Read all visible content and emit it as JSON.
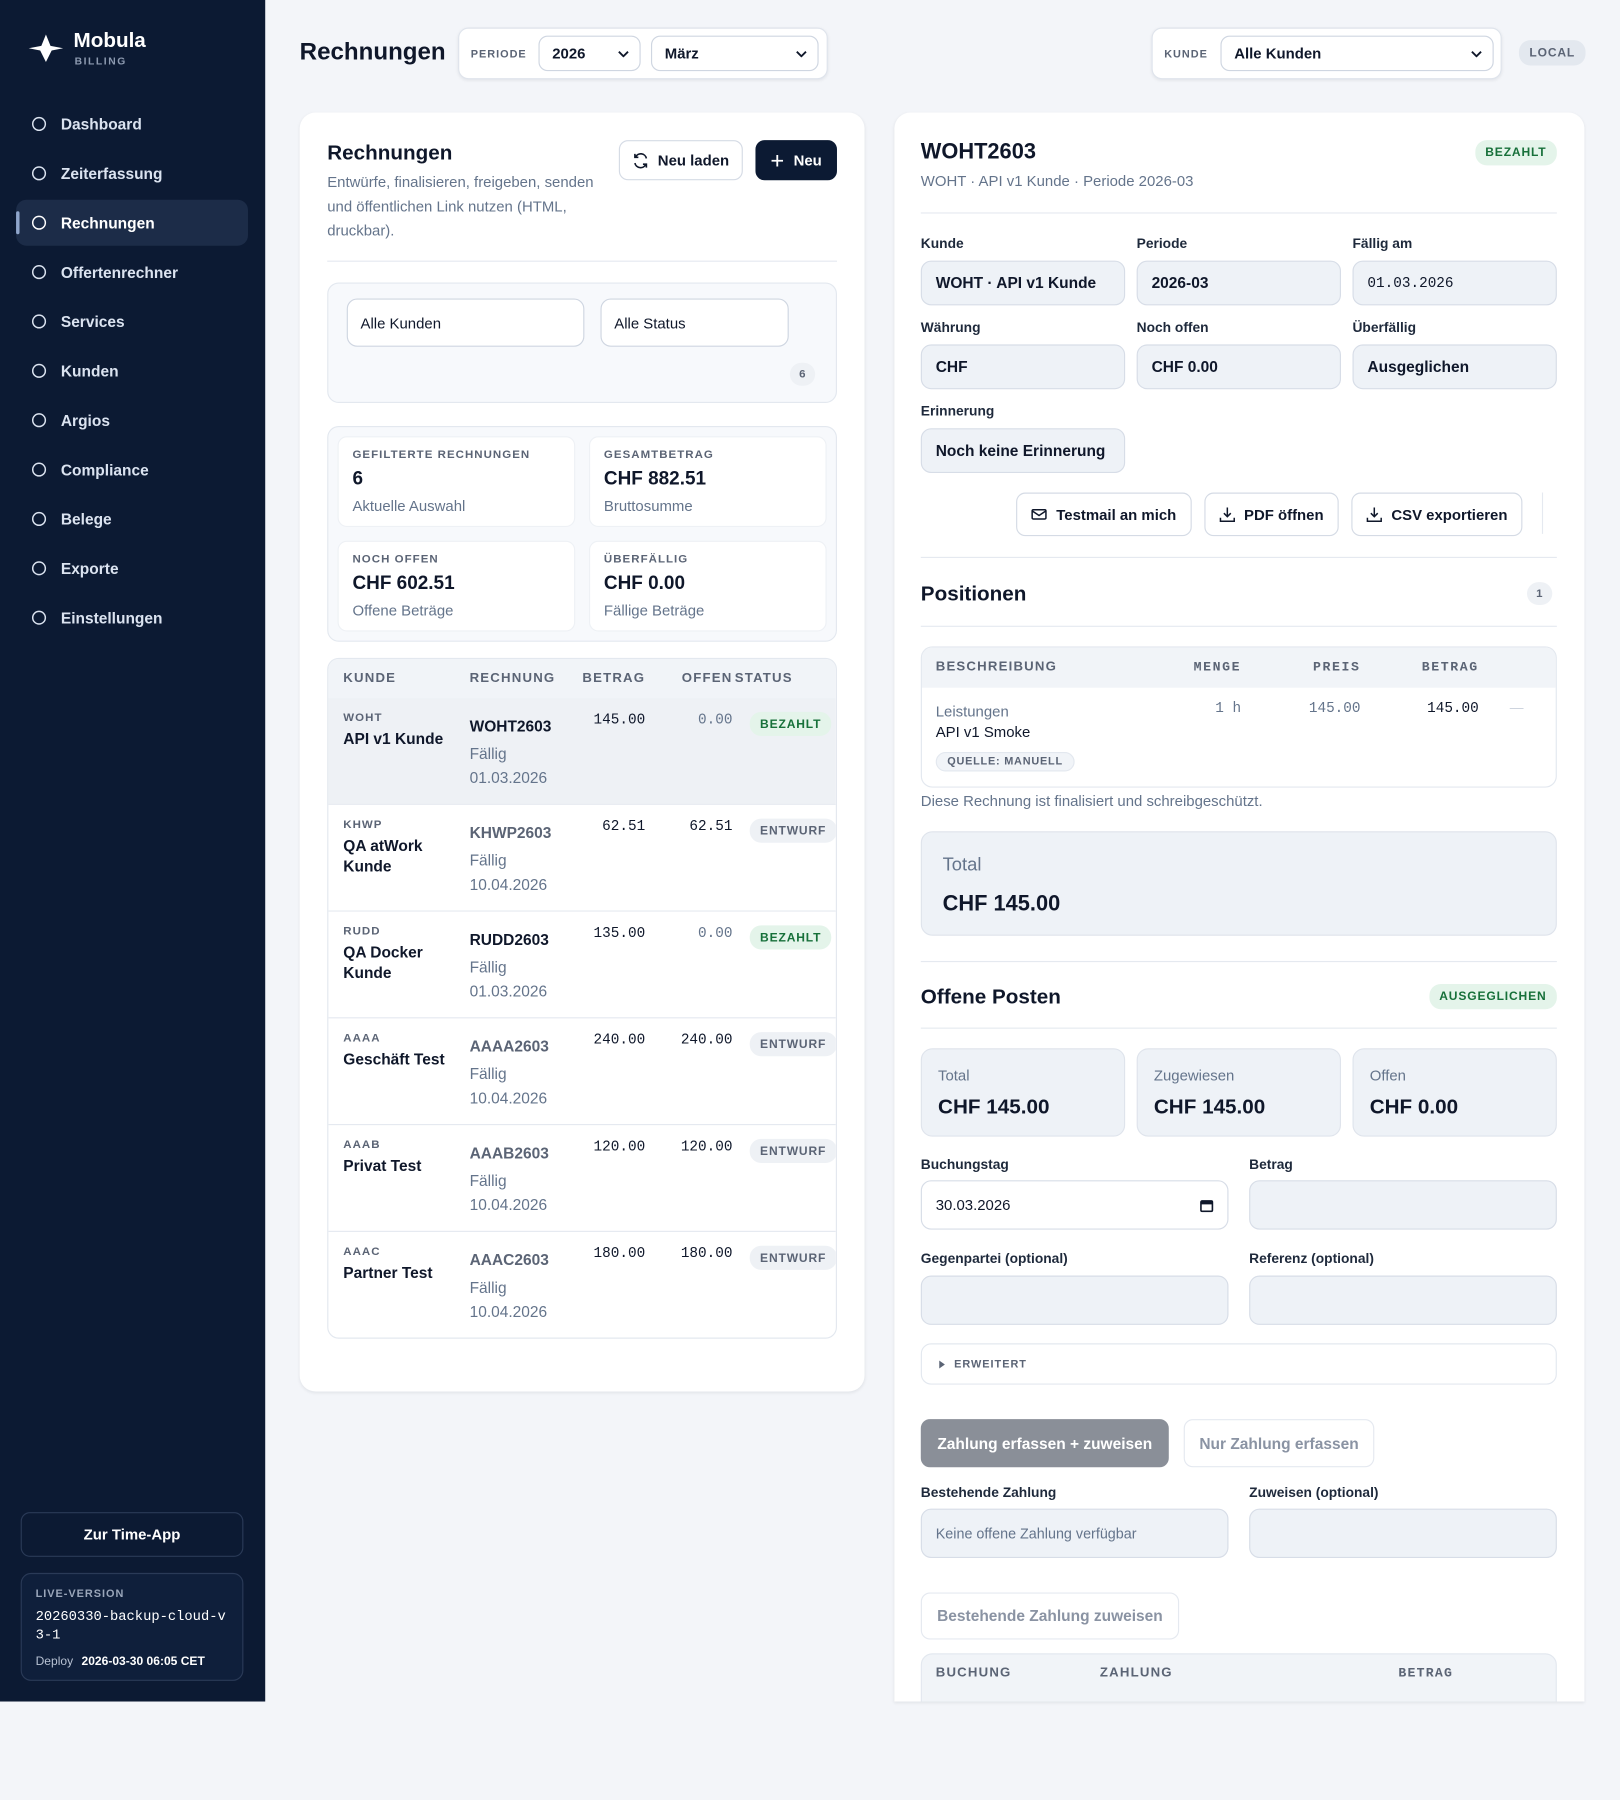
{
  "sidebar": {
    "brand": "Mobula",
    "brand_sub": "BILLING",
    "nav": [
      "Dashboard",
      "Zeiterfassung",
      "Rechnungen",
      "Offertenrechner",
      "Services",
      "Kunden",
      "Argios",
      "Compliance",
      "Belege",
      "Exporte",
      "Einstellungen"
    ],
    "time_app": "Zur Time-App",
    "version_label": "LIVE-VERSION",
    "version": "20260330-backup-cloud-v3-1",
    "deploy_label": "Deploy",
    "deploy": "2026-03-30 06:05 CET"
  },
  "header": {
    "title": "Rechnungen",
    "period_label": "PERIODE",
    "year": "2026",
    "month": "März",
    "customer_label": "KUNDE",
    "customer": "Alle Kunden",
    "env": "LOCAL"
  },
  "list": {
    "title": "Rechnungen",
    "description": "Entwürfe, finalisieren, freigeben, senden und öffentlichen Link nutzen (HTML, druckbar).",
    "reload": "Neu laden",
    "new": "Neu",
    "filter_customer": "Alle Kunden",
    "filter_status": "Alle Status",
    "count": 6,
    "stats": [
      {
        "label": "GEFILTERTE RECHNUNGEN",
        "value": "6",
        "sub": "Aktuelle Auswahl"
      },
      {
        "label": "GESAMTBETRAG",
        "value": "CHF 882.51",
        "sub": "Bruttosumme"
      },
      {
        "label": "NOCH OFFEN",
        "value": "CHF 602.51",
        "sub": "Offene Beträge"
      },
      {
        "label": "ÜBERFÄLLIG",
        "value": "CHF 0.00",
        "sub": "Fällige Beträge"
      }
    ],
    "columns": [
      "KUNDE",
      "RECHNUNG",
      "BETRAG",
      "OFFEN",
      "STATUS"
    ],
    "rows": [
      {
        "code": "WOHT",
        "customer": "API v1 Kunde",
        "invoice": "WOHT2603",
        "due_label": "Fällig",
        "due": "01.03.2026",
        "amount": "145.00",
        "open": "0.00",
        "status": "BEZAHLT"
      },
      {
        "code": "KHWP",
        "customer": "QA atWork Kunde",
        "invoice": "KHWP2603",
        "due_label": "Fällig",
        "due": "10.04.2026",
        "amount": "62.51",
        "open": "62.51",
        "status": "ENTWURF"
      },
      {
        "code": "RUDD",
        "customer": "QA Docker Kunde",
        "invoice": "RUDD2603",
        "due_label": "Fällig",
        "due": "01.03.2026",
        "amount": "135.00",
        "open": "0.00",
        "status": "BEZAHLT"
      },
      {
        "code": "AAAA",
        "customer": "Geschäft Test",
        "invoice": "AAAA2603",
        "due_label": "Fällig",
        "due": "10.04.2026",
        "amount": "240.00",
        "open": "240.00",
        "status": "ENTWURF"
      },
      {
        "code": "AAAB",
        "customer": "Privat Test",
        "invoice": "AAAB2603",
        "due_label": "Fällig",
        "due": "10.04.2026",
        "amount": "120.00",
        "open": "120.00",
        "status": "ENTWURF"
      },
      {
        "code": "AAAC",
        "customer": "Partner Test",
        "invoice": "AAAC2603",
        "due_label": "Fällig",
        "due": "10.04.2026",
        "amount": "180.00",
        "open": "180.00",
        "status": "ENTWURF"
      }
    ]
  },
  "detail": {
    "title": "WOHT2603",
    "status": "BEZAHLT",
    "subtitle": "WOHT · API v1 Kunde · Periode 2026-03",
    "fields": [
      {
        "label": "Kunde",
        "value": "WOHT · API v1 Kunde"
      },
      {
        "label": "Periode",
        "value": "2026-03"
      },
      {
        "label": "Fällig am",
        "value": "01.03.2026"
      },
      {
        "label": "Währung",
        "value": "CHF"
      },
      {
        "label": "Noch offen",
        "value": "CHF 0.00"
      },
      {
        "label": "Überfällig",
        "value": "Ausgeglichen"
      },
      {
        "label": "Erinnerung",
        "value": "Noch keine Erinnerung"
      }
    ],
    "actions": [
      "Testmail an mich",
      "PDF öffnen",
      "CSV exportieren"
    ],
    "positions": {
      "title": "Positionen",
      "count": 1,
      "columns": [
        "BESCHREIBUNG",
        "MENGE",
        "PREIS",
        "BETRAG"
      ],
      "rows": [
        {
          "title": "Leistungen",
          "description": "API v1 Smoke",
          "quantity": "1 h",
          "price": "145.00",
          "amount": "145.00",
          "action": "—",
          "source": "QUELLE: MANUELL"
        }
      ],
      "note": "Diese Rechnung ist finalisiert und schreibgeschützt.",
      "total_label": "Total",
      "total": "CHF 145.00"
    },
    "open_items": {
      "title": "Offene Posten",
      "status": "AUSGEGLICHEN",
      "cards": [
        {
          "label": "Total",
          "value": "CHF 145.00"
        },
        {
          "label": "Zugewiesen",
          "value": "CHF 145.00"
        },
        {
          "label": "Offen",
          "value": "CHF 0.00"
        }
      ],
      "booking_date_label": "Buchungstag",
      "booking_date": "30.03.2026",
      "amount_label": "Betrag",
      "counterparty_label": "Gegenpartei (optional)",
      "reference_label": "Referenz (optional)",
      "advanced": "ERWEITERT",
      "primary": "Zahlung erfassen + zuweisen",
      "secondary": "Nur Zahlung erfassen",
      "existing_label": "Bestehende Zahlung",
      "existing_placeholder": "Keine offene Zahlung verfügbar",
      "assign_label": "Zuweisen (optional)",
      "assign_button": "Bestehende Zahlung zuweisen",
      "columns": [
        "BUCHUNG",
        "ZAHLUNG",
        "BETRAG"
      ]
    }
  }
}
